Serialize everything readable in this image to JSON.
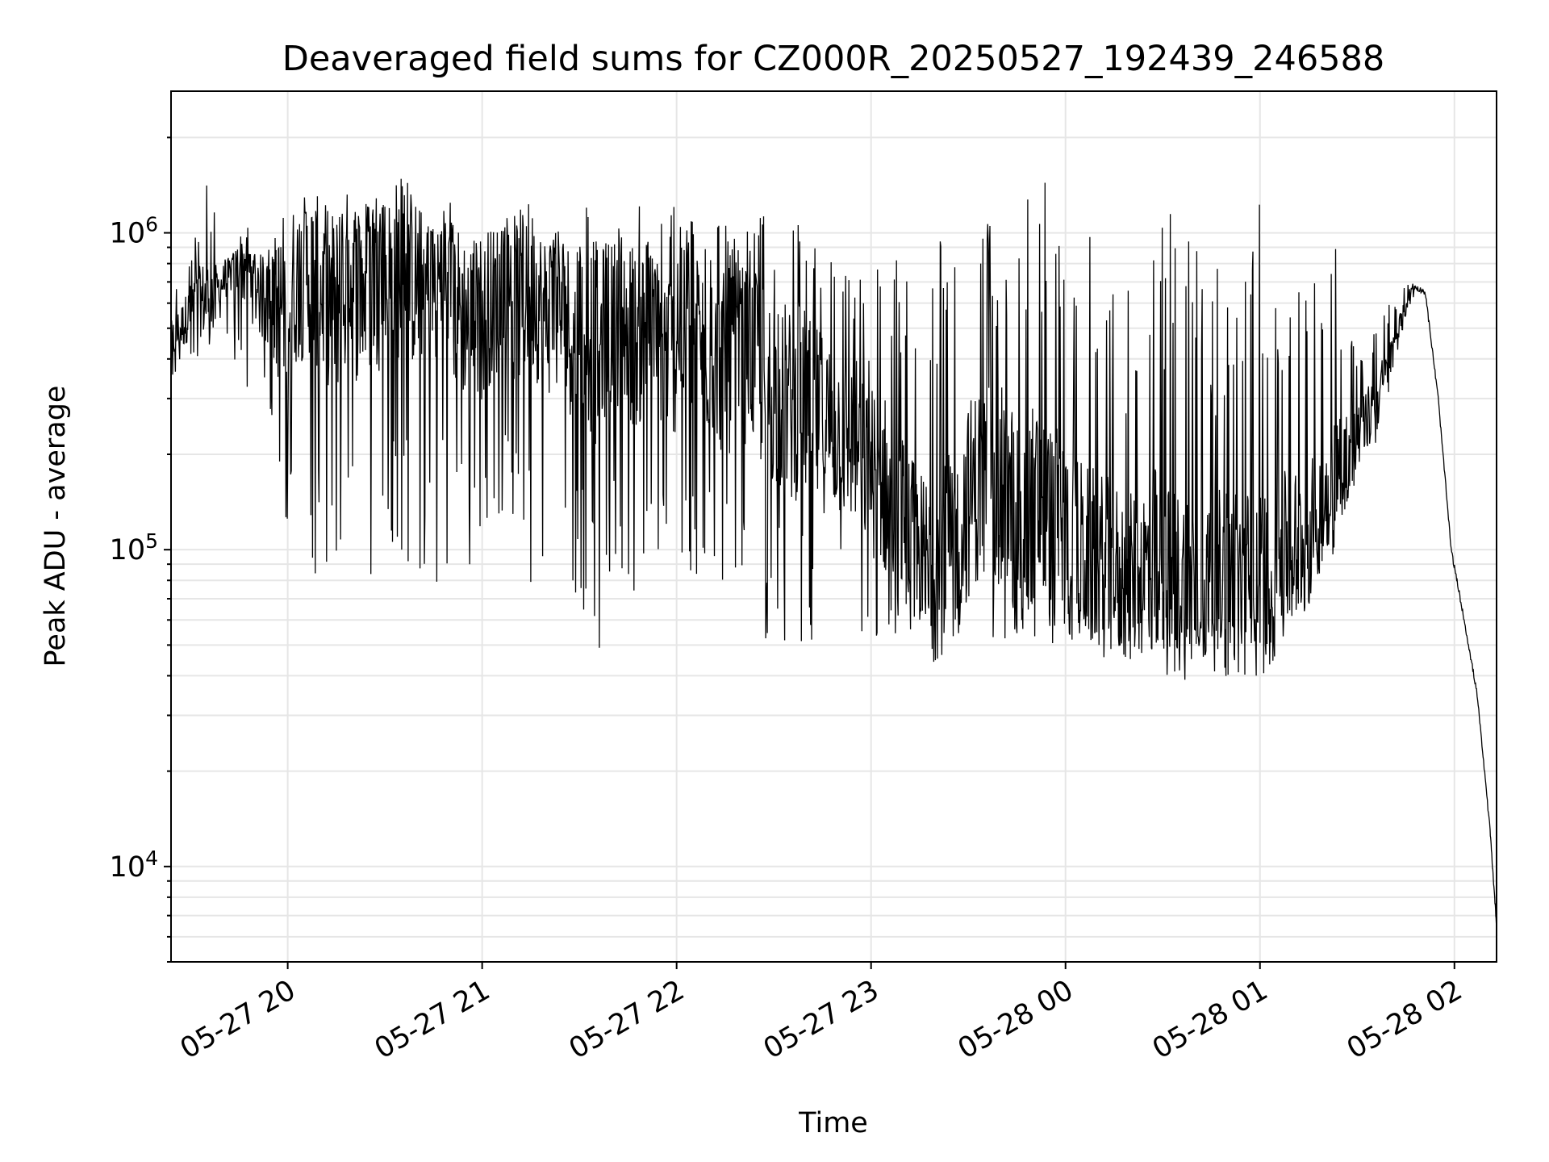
{
  "chart_data": {
    "type": "line",
    "title": "Deaveraged field sums for CZ000R_20250527_192439_246588",
    "xlabel": "Time",
    "ylabel": "Peak ADU - average",
    "yscale": "log",
    "ylim": [
      5000,
      2800000
    ],
    "xlim": [
      "05-27 19:24",
      "05-28 02:13"
    ],
    "grid": true,
    "legend": "none",
    "x_ticks": [
      "05-27 20",
      "05-27 21",
      "05-27 22",
      "05-27 23",
      "05-28 00",
      "05-28 01",
      "05-28 02"
    ],
    "y_ticks": [
      {
        "base": "10",
        "exp": "4",
        "value": 10000
      },
      {
        "base": "10",
        "exp": "5",
        "value": 100000
      },
      {
        "base": "10",
        "exp": "6",
        "value": 1000000
      }
    ],
    "colors": {
      "line": "#000000",
      "grid": "#e6e6e6",
      "axes": "#000000"
    },
    "series": [
      {
        "x": [
          "05-27 19:24",
          "05-27 19:28",
          "05-27 19:31",
          "05-27 19:35",
          "05-27 19:39",
          "05-27 19:43",
          "05-27 19:47",
          "05-27 19:51",
          "05-27 19:55",
          "05-27 19:58",
          "05-27 20:03",
          "05-27 20:07",
          "05-27 20:11",
          "05-27 20:15",
          "05-27 20:19",
          "05-27 20:23",
          "05-27 20:27",
          "05-27 20:31",
          "05-27 20:35",
          "05-27 20:39",
          "05-27 20:43",
          "05-27 20:47",
          "05-27 20:51",
          "05-27 20:55",
          "05-27 20:59",
          "05-27 21:03",
          "05-27 21:07",
          "05-27 21:11",
          "05-27 21:15",
          "05-27 21:19",
          "05-27 21:23",
          "05-27 21:27",
          "05-27 21:31",
          "05-27 21:35",
          "05-27 21:39",
          "05-27 21:43",
          "05-27 21:47",
          "05-27 21:51",
          "05-27 21:55",
          "05-27 21:59",
          "05-27 22:03",
          "05-27 22:07",
          "05-27 22:11",
          "05-27 22:15",
          "05-27 22:19",
          "05-27 22:23",
          "05-27 22:27",
          "05-27 22:31",
          "05-27 22:35",
          "05-27 22:39",
          "05-27 22:43",
          "05-27 22:47",
          "05-27 22:51",
          "05-27 22:55",
          "05-27 22:59",
          "05-27 23:03",
          "05-27 23:07",
          "05-27 23:11",
          "05-27 23:15",
          "05-27 23:19",
          "05-27 23:23",
          "05-27 23:27",
          "05-27 23:31",
          "05-27 23:35",
          "05-27 23:39",
          "05-27 23:43",
          "05-27 23:47",
          "05-27 23:51",
          "05-27 23:55",
          "05-27 23:59",
          "05-28 00:03",
          "05-28 00:07",
          "05-28 00:11",
          "05-28 00:15",
          "05-28 00:19",
          "05-28 00:23",
          "05-28 00:27",
          "05-28 00:31",
          "05-28 00:35",
          "05-28 00:39",
          "05-28 00:43",
          "05-28 00:47",
          "05-28 00:51",
          "05-28 00:55",
          "05-28 00:59",
          "05-28 01:03",
          "05-28 01:07",
          "05-28 01:11",
          "05-28 01:15",
          "05-28 01:19",
          "05-28 01:23",
          "05-28 01:27",
          "05-28 01:31",
          "05-28 01:35",
          "05-28 01:39",
          "05-28 01:43",
          "05-28 01:47",
          "05-28 01:51",
          "05-28 01:55",
          "05-28 01:59",
          "05-28 02:03",
          "05-28 02:07",
          "05-28 02:11",
          "05-28 02:13"
        ],
        "y": [
          450000,
          520000,
          600000,
          620000,
          680000,
          750000,
          800000,
          650000,
          550000,
          600000,
          700000,
          750000,
          650000,
          600000,
          700000,
          650000,
          750000,
          700000,
          800000,
          700000,
          650000,
          700000,
          600000,
          550000,
          500000,
          600000,
          650000,
          600000,
          700000,
          550000,
          600000,
          500000,
          550000,
          450000,
          500000,
          550000,
          450000,
          500000,
          450000,
          420000,
          500000,
          450000,
          400000,
          380000,
          420000,
          400000,
          350000,
          300000,
          280000,
          300000,
          260000,
          250000,
          230000,
          220000,
          180000,
          170000,
          140000,
          120000,
          100000,
          90000,
          95000,
          120000,
          150000,
          180000,
          160000,
          140000,
          130000,
          140000,
          120000,
          110000,
          100000,
          95000,
          90000,
          85000,
          80000,
          85000,
          90000,
          80000,
          78000,
          80000,
          76000,
          80000,
          78000,
          76000,
          80000,
          85000,
          90000,
          100000,
          110000,
          140000,
          170000,
          200000,
          240000,
          280000,
          350000,
          500000,
          680000,
          650000,
          300000,
          100000,
          60000,
          35000,
          13000,
          6500
        ],
        "spike_high": [
          700000,
          820000,
          900000,
          1800000,
          900000,
          850000,
          850000,
          800000,
          1000000,
          2200000,
          1300000,
          1200000,
          1100000,
          1400000,
          1200000,
          1200000,
          1300000,
          1300000,
          1600000,
          1400000,
          1100000,
          1200000,
          1300000,
          1200000,
          1100000,
          1000000,
          1100000,
          1300000,
          1100000,
          1000000,
          1200000,
          1100000,
          1300000,
          1200000,
          1000000,
          1100000,
          1300000,
          1100000,
          1200000,
          1300000,
          1200000,
          1100000,
          1000000,
          1300000,
          1100000,
          1000000,
          1300000,
          1000000,
          1200000,
          1100000,
          1100000,
          900000,
          800000,
          800000,
          700000,
          1100000,
          900000,
          800000,
          700000,
          1500000,
          1200000,
          1100000,
          1300000,
          1000000,
          1600000,
          1500000,
          1200000,
          1800000,
          1600000,
          1300000,
          1200000,
          1000000,
          1000000,
          900000,
          800000,
          800000,
          1300000,
          1300000,
          1000000,
          1200000,
          800000,
          900000,
          1300000,
          1100000,
          1300000,
          1200000,
          1100000,
          1000000,
          800000,
          700000,
          1500000,
          650000,
          400000,
          600000,
          700000,
          700000,
          720000,
          650000,
          300000,
          100000,
          60000,
          35000,
          13000,
          6500
        ],
        "spike_low": [
          350000,
          360000,
          380000,
          420000,
          500000,
          450000,
          180000,
          200000,
          250000,
          120000,
          90000,
          80000,
          60000,
          70000,
          50000,
          60000,
          55000,
          70000,
          75000,
          80000,
          90000,
          70000,
          85000,
          75000,
          90000,
          80000,
          85000,
          70000,
          65000,
          70000,
          60000,
          65000,
          55000,
          42000,
          70000,
          60000,
          65000,
          70000,
          75000,
          80000,
          85000,
          65000,
          70000,
          60000,
          55000,
          60000,
          50000,
          55000,
          48000,
          50000,
          52000,
          48000,
          50000,
          46000,
          48000,
          50000,
          52000,
          55000,
          58000,
          60000,
          55000,
          52000,
          50000,
          48000,
          50000,
          52000,
          55000,
          52000,
          50000,
          48000,
          50000,
          52000,
          50000,
          48000,
          50000,
          52000,
          46000,
          48000,
          45000,
          48000,
          50000,
          46000,
          48000,
          45000,
          48000,
          50000,
          55000,
          65000,
          70000,
          90000,
          110000,
          140000,
          170000,
          200000,
          280000,
          450000,
          620000,
          600000,
          280000,
          90000,
          55000,
          32000,
          12000,
          6500
        ]
      }
    ]
  }
}
